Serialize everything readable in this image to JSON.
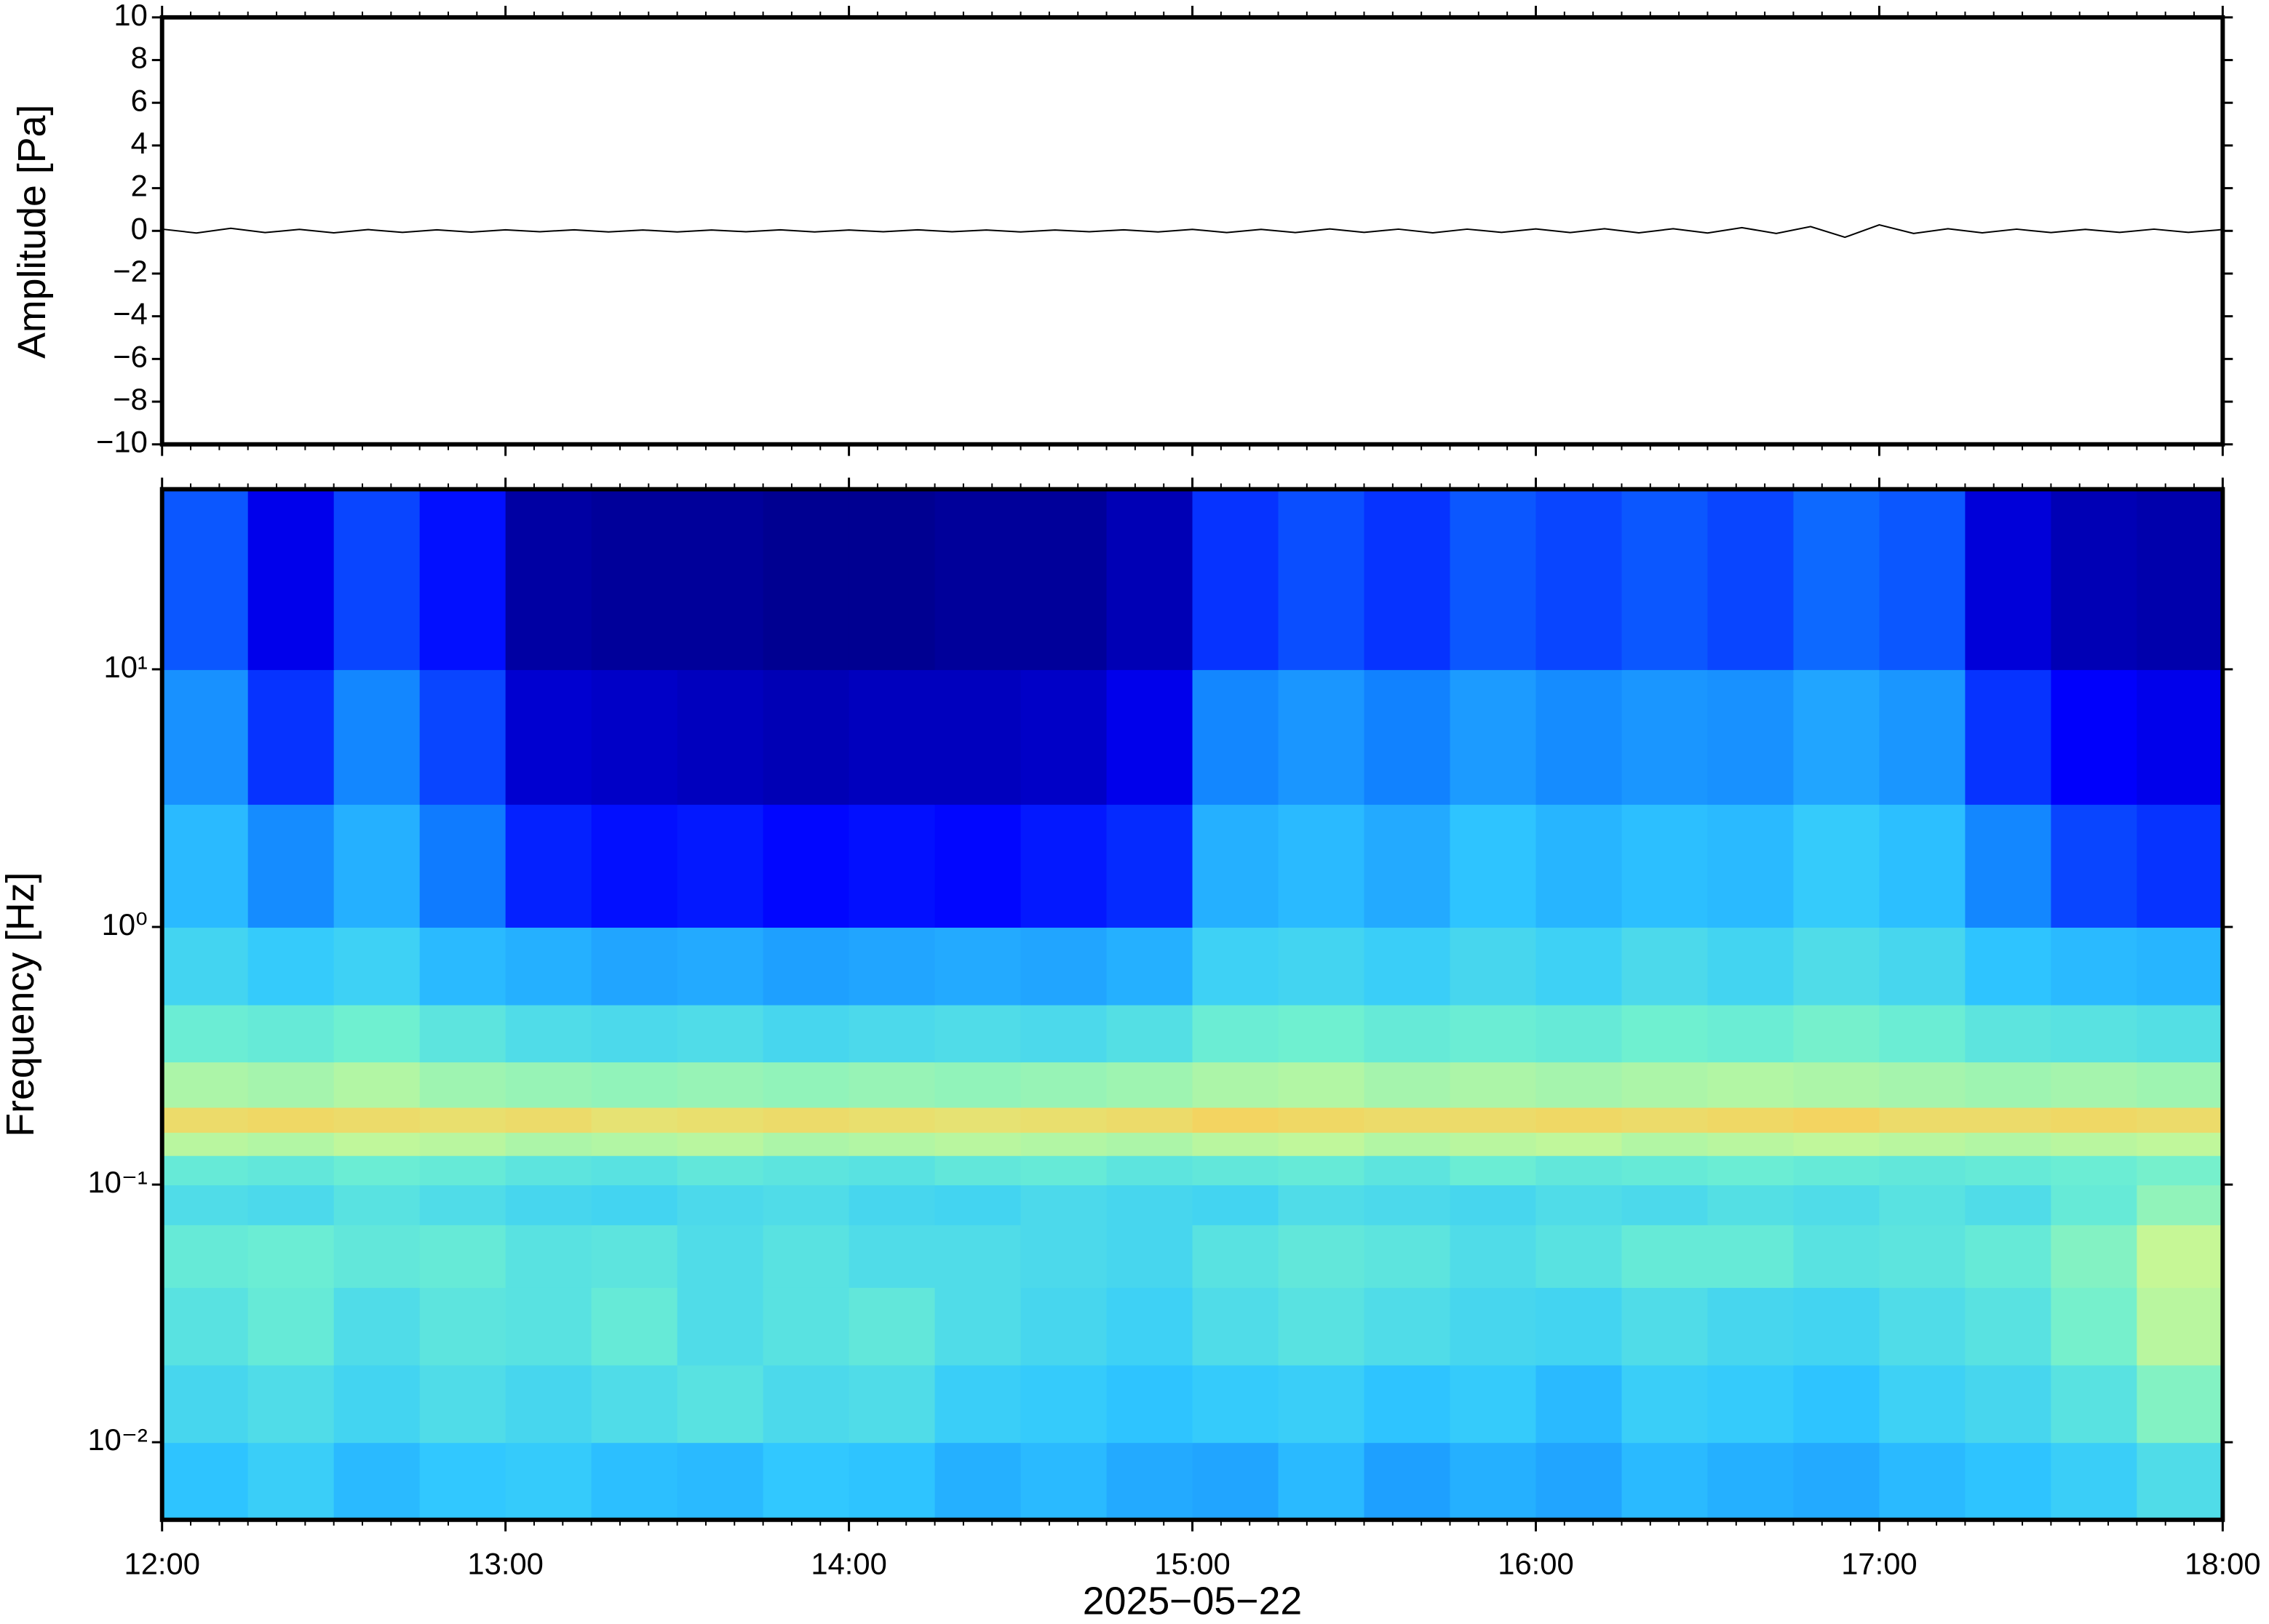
{
  "chart_data": [
    {
      "type": "line",
      "ylabel": "Amplitude [Pa]",
      "color": "#000000",
      "xlim": [
        12,
        18
      ],
      "xticks": [
        12,
        13,
        14,
        15,
        16,
        17,
        18
      ],
      "ylim": [
        -10,
        10
      ],
      "yticks": [
        {
          "value": -10,
          "label": "−10"
        },
        {
          "value": -8,
          "label": "−8"
        },
        {
          "value": -6,
          "label": "−6"
        },
        {
          "value": -4,
          "label": "−4"
        },
        {
          "value": -2,
          "label": "−2"
        },
        0,
        2,
        4,
        6,
        8,
        10
      ],
      "x": [
        12.0,
        12.1,
        12.2,
        12.3,
        12.4,
        12.5,
        12.6,
        12.7,
        12.8,
        12.9,
        13.0,
        13.1,
        13.2,
        13.3,
        13.4,
        13.5,
        13.6,
        13.7,
        13.8,
        13.9,
        14.0,
        14.1,
        14.2,
        14.3,
        14.4,
        14.5,
        14.6,
        14.7,
        14.8,
        14.9,
        15.0,
        15.1,
        15.2,
        15.3,
        15.4,
        15.5,
        15.6,
        15.7,
        15.8,
        15.9,
        16.0,
        16.1,
        16.2,
        16.3,
        16.4,
        16.5,
        16.6,
        16.7,
        16.8,
        16.9,
        17.0,
        17.1,
        17.2,
        17.3,
        17.4,
        17.5,
        17.6,
        17.7,
        17.8,
        17.9,
        18.0
      ],
      "values": [
        0.08,
        -0.1,
        0.12,
        -0.08,
        0.07,
        -0.09,
        0.06,
        -0.07,
        0.05,
        -0.06,
        0.05,
        -0.04,
        0.05,
        -0.05,
        0.04,
        -0.05,
        0.04,
        -0.04,
        0.05,
        -0.05,
        0.04,
        -0.04,
        0.05,
        -0.04,
        0.04,
        -0.05,
        0.04,
        -0.04,
        0.05,
        -0.05,
        0.07,
        -0.08,
        0.07,
        -0.08,
        0.09,
        -0.07,
        0.08,
        -0.09,
        0.08,
        -0.07,
        0.09,
        -0.08,
        0.1,
        -0.09,
        0.1,
        -0.1,
        0.15,
        -0.12,
        0.2,
        -0.3,
        0.28,
        -0.12,
        0.1,
        -0.09,
        0.08,
        -0.08,
        0.07,
        -0.07,
        0.08,
        -0.07,
        0.06
      ]
    },
    {
      "type": "spectrogram",
      "ylabel": "Frequency [Hz]",
      "xlabel": "2025−05−22",
      "log_y": true,
      "xlim": [
        12,
        18
      ],
      "xticks": [
        {
          "value": 12,
          "label": "12:00"
        },
        {
          "value": 13,
          "label": "13:00"
        },
        {
          "value": 14,
          "label": "14:00"
        },
        {
          "value": 15,
          "label": "15:00"
        },
        {
          "value": 16,
          "label": "16:00"
        },
        {
          "value": 17,
          "label": "17:00"
        },
        {
          "value": 18,
          "label": "18:00"
        }
      ],
      "ylim": [
        0.005,
        50
      ],
      "yticks": [
        {
          "value": 0.01,
          "label": "10⁻²"
        },
        {
          "value": 0.1,
          "label": "10⁻¹"
        },
        {
          "value": 1,
          "label": "10⁰"
        },
        {
          "value": 10,
          "label": "10¹"
        }
      ],
      "xbins": [
        12,
        12.25,
        12.5,
        12.75,
        13,
        13.25,
        13.5,
        13.75,
        14,
        14.25,
        14.5,
        14.75,
        15,
        15.25,
        15.5,
        15.75,
        16,
        16.25,
        16.5,
        16.75,
        17,
        17.25,
        17.5,
        17.75,
        18
      ],
      "ybins": [
        0.005,
        0.01,
        0.02,
        0.04,
        0.07,
        0.1,
        0.13,
        0.16,
        0.2,
        0.3,
        0.5,
        1,
        3,
        10,
        50
      ],
      "zlim": [
        0,
        1
      ],
      "colormap": [
        "#00007f",
        "#0000ff",
        "#1080ff",
        "#30c8ff",
        "#70f0d0",
        "#d0f890",
        "#ffc850",
        "#ff5020"
      ],
      "z": [
        [
          0.42,
          0.45,
          0.4,
          0.43,
          0.44,
          0.41,
          0.4,
          0.43,
          0.42,
          0.38,
          0.4,
          0.37,
          0.36,
          0.4,
          0.35,
          0.38,
          0.36,
          0.4,
          0.38,
          0.37,
          0.4,
          0.42,
          0.45,
          0.5
        ],
        [
          0.48,
          0.5,
          0.47,
          0.5,
          0.48,
          0.5,
          0.52,
          0.49,
          0.5,
          0.45,
          0.44,
          0.42,
          0.44,
          0.45,
          0.42,
          0.44,
          0.4,
          0.45,
          0.44,
          0.42,
          0.46,
          0.48,
          0.52,
          0.6
        ],
        [
          0.52,
          0.55,
          0.5,
          0.53,
          0.52,
          0.55,
          0.5,
          0.52,
          0.54,
          0.5,
          0.48,
          0.46,
          0.5,
          0.52,
          0.5,
          0.48,
          0.47,
          0.5,
          0.48,
          0.47,
          0.5,
          0.52,
          0.58,
          0.68
        ],
        [
          0.55,
          0.56,
          0.54,
          0.55,
          0.52,
          0.53,
          0.5,
          0.52,
          0.5,
          0.5,
          0.49,
          0.48,
          0.52,
          0.54,
          0.53,
          0.5,
          0.52,
          0.55,
          0.55,
          0.52,
          0.53,
          0.55,
          0.6,
          0.7
        ],
        [
          0.5,
          0.49,
          0.52,
          0.5,
          0.48,
          0.47,
          0.49,
          0.5,
          0.48,
          0.47,
          0.49,
          0.48,
          0.47,
          0.5,
          0.49,
          0.48,
          0.5,
          0.49,
          0.51,
          0.5,
          0.52,
          0.5,
          0.55,
          0.62
        ],
        [
          0.55,
          0.54,
          0.56,
          0.55,
          0.53,
          0.52,
          0.54,
          0.53,
          0.52,
          0.54,
          0.55,
          0.53,
          0.54,
          0.55,
          0.53,
          0.56,
          0.54,
          0.55,
          0.56,
          0.55,
          0.54,
          0.55,
          0.56,
          0.58
        ],
        [
          0.68,
          0.67,
          0.69,
          0.68,
          0.66,
          0.67,
          0.68,
          0.66,
          0.67,
          0.68,
          0.67,
          0.66,
          0.68,
          0.69,
          0.67,
          0.68,
          0.69,
          0.67,
          0.68,
          0.69,
          0.68,
          0.67,
          0.68,
          0.69
        ],
        [
          0.8,
          0.81,
          0.8,
          0.79,
          0.8,
          0.78,
          0.79,
          0.8,
          0.79,
          0.78,
          0.79,
          0.8,
          0.82,
          0.81,
          0.8,
          0.8,
          0.81,
          0.8,
          0.81,
          0.82,
          0.8,
          0.8,
          0.81,
          0.8
        ],
        [
          0.66,
          0.65,
          0.67,
          0.64,
          0.63,
          0.62,
          0.63,
          0.62,
          0.63,
          0.62,
          0.63,
          0.64,
          0.66,
          0.67,
          0.65,
          0.66,
          0.65,
          0.66,
          0.67,
          0.66,
          0.65,
          0.64,
          0.65,
          0.64
        ],
        [
          0.56,
          0.55,
          0.57,
          0.53,
          0.5,
          0.49,
          0.5,
          0.48,
          0.49,
          0.5,
          0.49,
          0.51,
          0.56,
          0.57,
          0.55,
          0.56,
          0.55,
          0.57,
          0.56,
          0.58,
          0.56,
          0.53,
          0.52,
          0.51
        ],
        [
          0.47,
          0.44,
          0.46,
          0.4,
          0.38,
          0.36,
          0.37,
          0.35,
          0.36,
          0.37,
          0.36,
          0.38,
          0.46,
          0.47,
          0.45,
          0.48,
          0.46,
          0.49,
          0.47,
          0.5,
          0.48,
          0.42,
          0.4,
          0.39
        ],
        [
          0.4,
          0.31,
          0.38,
          0.28,
          0.18,
          0.16,
          0.17,
          0.15,
          0.16,
          0.15,
          0.17,
          0.19,
          0.38,
          0.4,
          0.37,
          0.42,
          0.39,
          0.41,
          0.4,
          0.44,
          0.41,
          0.3,
          0.22,
          0.2
        ],
        [
          0.32,
          0.2,
          0.3,
          0.22,
          0.09,
          0.08,
          0.07,
          0.06,
          0.07,
          0.07,
          0.08,
          0.12,
          0.3,
          0.33,
          0.29,
          0.34,
          0.31,
          0.33,
          0.32,
          0.36,
          0.33,
          0.2,
          0.14,
          0.12
        ],
        [
          0.24,
          0.12,
          0.22,
          0.16,
          0.04,
          0.03,
          0.03,
          0.02,
          0.02,
          0.03,
          0.03,
          0.06,
          0.2,
          0.23,
          0.2,
          0.24,
          0.22,
          0.24,
          0.22,
          0.26,
          0.24,
          0.1,
          0.06,
          0.05
        ]
      ]
    }
  ]
}
